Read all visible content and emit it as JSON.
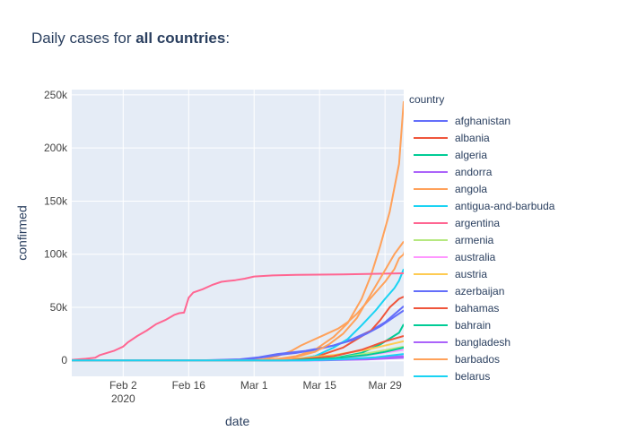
{
  "title": {
    "prefix": "Daily cases for ",
    "bold": "all countries",
    "suffix": ":"
  },
  "chart_data": {
    "type": "line",
    "title": "Daily cases for all countries:",
    "xlabel": "date",
    "ylabel": "confirmed",
    "legend_title": "country",
    "legend_position": "right",
    "grid": true,
    "x_tick_labels": [
      "Feb 2\n2020",
      "Feb 16",
      "Mar 1",
      "Mar 15",
      "Mar 29"
    ],
    "y_tick_labels": [
      "0",
      "50k",
      "100k",
      "150k",
      "200k",
      "250k"
    ],
    "xlim": [
      "2020-01-22",
      "2020-04-02"
    ],
    "ylim": [
      -15000,
      255000
    ],
    "series": [
      {
        "name": "afghanistan",
        "color": "#636efa",
        "points": [
          [
            "2020-01-22",
            0
          ],
          [
            "2020-02-18",
            0
          ],
          [
            "2020-02-27",
            1000
          ],
          [
            "2020-03-02",
            3000
          ],
          [
            "2020-03-06",
            6000
          ],
          [
            "2020-03-12",
            9000
          ],
          [
            "2020-03-18",
            14000
          ],
          [
            "2020-03-22",
            20000
          ],
          [
            "2020-03-26",
            28000
          ],
          [
            "2020-03-29",
            36000
          ],
          [
            "2020-04-02",
            51000
          ]
        ]
      },
      {
        "name": "albania",
        "color": "#EF553B",
        "points": [
          [
            "2020-01-22",
            0
          ],
          [
            "2020-03-05",
            0
          ],
          [
            "2020-03-12",
            2000
          ],
          [
            "2020-03-16",
            6000
          ],
          [
            "2020-03-20",
            12000
          ],
          [
            "2020-03-23",
            20000
          ],
          [
            "2020-03-26",
            28000
          ],
          [
            "2020-03-28",
            38000
          ],
          [
            "2020-03-30",
            50000
          ],
          [
            "2020-04-01",
            58000
          ],
          [
            "2020-04-02",
            60000
          ]
        ]
      },
      {
        "name": "algeria",
        "color": "#00cc96",
        "points": [
          [
            "2020-01-22",
            0
          ],
          [
            "2020-03-10",
            0
          ],
          [
            "2020-03-18",
            2000
          ],
          [
            "2020-03-24",
            7000
          ],
          [
            "2020-03-28",
            15000
          ],
          [
            "2020-04-01",
            26000
          ],
          [
            "2020-04-02",
            34000
          ]
        ]
      },
      {
        "name": "andorra",
        "color": "#ab63fa",
        "points": [
          [
            "2020-01-22",
            0
          ],
          [
            "2020-03-15",
            0
          ],
          [
            "2020-03-25",
            800
          ],
          [
            "2020-04-02",
            2500
          ]
        ]
      },
      {
        "name": "angola",
        "color": "#FFA15A",
        "points": [
          [
            "2020-01-22",
            0
          ],
          [
            "2020-02-29",
            0
          ],
          [
            "2020-03-05",
            700
          ],
          [
            "2020-03-10",
            4000
          ],
          [
            "2020-03-14",
            10000
          ],
          [
            "2020-03-18",
            22000
          ],
          [
            "2020-03-21",
            35000
          ],
          [
            "2020-03-24",
            58000
          ],
          [
            "2020-03-26",
            80000
          ],
          [
            "2020-03-28",
            108000
          ],
          [
            "2020-03-30",
            140000
          ],
          [
            "2020-04-01",
            185000
          ],
          [
            "2020-04-02",
            244000
          ]
        ]
      },
      {
        "name": "antigua-and-barbuda",
        "color": "#19d3f3",
        "points": [
          [
            "2020-01-22",
            0
          ],
          [
            "2020-03-08",
            0
          ],
          [
            "2020-03-14",
            4000
          ],
          [
            "2020-03-18",
            12000
          ],
          [
            "2020-03-21",
            20000
          ],
          [
            "2020-03-24",
            33000
          ],
          [
            "2020-03-27",
            47000
          ],
          [
            "2020-03-29",
            58000
          ],
          [
            "2020-03-31",
            68000
          ],
          [
            "2020-04-01",
            75000
          ],
          [
            "2020-04-02",
            86000
          ]
        ]
      },
      {
        "name": "argentina",
        "color": "#FF6692",
        "points": [
          [
            "2020-01-22",
            500
          ],
          [
            "2020-01-25",
            1500
          ],
          [
            "2020-01-27",
            2500
          ],
          [
            "2020-01-28",
            5000
          ],
          [
            "2020-01-31",
            9000
          ],
          [
            "2020-02-02",
            13000
          ],
          [
            "2020-02-03",
            17000
          ],
          [
            "2020-02-05",
            23000
          ],
          [
            "2020-02-07",
            28000
          ],
          [
            "2020-02-09",
            34000
          ],
          [
            "2020-02-11",
            38000
          ],
          [
            "2020-02-13",
            43000
          ],
          [
            "2020-02-14",
            44500
          ],
          [
            "2020-02-15",
            45000
          ],
          [
            "2020-02-16",
            59000
          ],
          [
            "2020-02-17",
            64000
          ],
          [
            "2020-02-19",
            67000
          ],
          [
            "2020-02-21",
            71000
          ],
          [
            "2020-02-23",
            74000
          ],
          [
            "2020-02-26",
            75500
          ],
          [
            "2020-02-28",
            77000
          ],
          [
            "2020-03-01",
            79000
          ],
          [
            "2020-03-05",
            80000
          ],
          [
            "2020-03-10",
            80500
          ],
          [
            "2020-03-20",
            81000
          ],
          [
            "2020-04-02",
            82000
          ]
        ]
      },
      {
        "name": "armenia",
        "color": "#B6E880",
        "points": [
          [
            "2020-01-22",
            0
          ],
          [
            "2020-03-10",
            0
          ],
          [
            "2020-03-20",
            3000
          ],
          [
            "2020-03-27",
            8000
          ],
          [
            "2020-04-02",
            13000
          ]
        ]
      },
      {
        "name": "australia",
        "color": "#FF97FF",
        "points": [
          [
            "2020-01-22",
            0
          ],
          [
            "2020-03-12",
            0
          ],
          [
            "2020-03-20",
            2000
          ],
          [
            "2020-03-27",
            6000
          ],
          [
            "2020-04-02",
            10000
          ]
        ]
      },
      {
        "name": "austria",
        "color": "#FECB52",
        "points": [
          [
            "2020-01-22",
            0
          ],
          [
            "2020-03-01",
            0
          ],
          [
            "2020-03-10",
            1500
          ],
          [
            "2020-03-18",
            5000
          ],
          [
            "2020-03-25",
            10000
          ],
          [
            "2020-04-02",
            18000
          ]
        ]
      },
      {
        "name": "azerbaijan",
        "color": "#636efa",
        "points": [
          [
            "2020-01-22",
            0
          ],
          [
            "2020-02-20",
            0
          ],
          [
            "2020-02-27",
            500
          ],
          [
            "2020-03-03",
            3000
          ],
          [
            "2020-03-06",
            5000
          ],
          [
            "2020-03-10",
            7000
          ],
          [
            "2020-03-14",
            10000
          ],
          [
            "2020-03-18",
            14000
          ],
          [
            "2020-03-22",
            19000
          ],
          [
            "2020-03-25",
            25000
          ],
          [
            "2020-03-28",
            32000
          ],
          [
            "2020-03-31",
            41000
          ],
          [
            "2020-04-02",
            47000
          ]
        ]
      },
      {
        "name": "bahamas",
        "color": "#EF553B",
        "points": [
          [
            "2020-01-22",
            0
          ],
          [
            "2020-03-08",
            0
          ],
          [
            "2020-03-18",
            4000
          ],
          [
            "2020-03-24",
            10000
          ],
          [
            "2020-03-29",
            18000
          ],
          [
            "2020-04-02",
            23000
          ]
        ]
      },
      {
        "name": "bahrain",
        "color": "#00cc96",
        "points": [
          [
            "2020-01-22",
            0
          ],
          [
            "2020-03-08",
            0
          ],
          [
            "2020-03-18",
            2000
          ],
          [
            "2020-03-25",
            5000
          ],
          [
            "2020-03-29",
            8000
          ],
          [
            "2020-04-02",
            12000
          ]
        ]
      },
      {
        "name": "bangladesh",
        "color": "#ab63fa",
        "points": [
          [
            "2020-01-22",
            0
          ],
          [
            "2020-03-12",
            0
          ],
          [
            "2020-03-22",
            1000
          ],
          [
            "2020-04-02",
            4000
          ]
        ]
      },
      {
        "name": "barbados",
        "color": "#FFA15A",
        "points": [
          [
            "2020-01-22",
            0
          ],
          [
            "2020-03-02",
            0
          ],
          [
            "2020-03-09",
            2000
          ],
          [
            "2020-03-14",
            8000
          ],
          [
            "2020-03-17",
            15000
          ],
          [
            "2020-03-20",
            25000
          ],
          [
            "2020-03-23",
            40000
          ],
          [
            "2020-03-25",
            55000
          ],
          [
            "2020-03-27",
            70000
          ],
          [
            "2020-03-29",
            85000
          ],
          [
            "2020-03-31",
            100000
          ],
          [
            "2020-04-02",
            112000
          ]
        ]
      },
      {
        "name": "belarus",
        "color": "#19d3f3",
        "points": [
          [
            "2020-01-22",
            0
          ],
          [
            "2020-03-12",
            0
          ],
          [
            "2020-03-20",
            1000
          ],
          [
            "2020-03-27",
            3000
          ],
          [
            "2020-04-02",
            6000
          ]
        ]
      }
    ],
    "extra_lines_not_in_legend": [
      {
        "color": "#FFA15A",
        "points": [
          [
            "2020-01-22",
            0
          ],
          [
            "2020-02-28",
            0
          ],
          [
            "2020-03-03",
            1000
          ],
          [
            "2020-03-06",
            4000
          ],
          [
            "2020-03-09",
            9000
          ],
          [
            "2020-03-11",
            14000
          ],
          [
            "2020-03-13",
            18000
          ],
          [
            "2020-03-16",
            24000
          ],
          [
            "2020-03-19",
            30000
          ],
          [
            "2020-03-21",
            36000
          ],
          [
            "2020-03-23",
            44000
          ],
          [
            "2020-03-25",
            54000
          ],
          [
            "2020-03-27",
            64000
          ],
          [
            "2020-03-29",
            74000
          ],
          [
            "2020-03-31",
            86000
          ],
          [
            "2020-04-01",
            96000
          ],
          [
            "2020-04-02",
            100000
          ],
          [
            "2020-04-03",
            115000
          ]
        ]
      }
    ]
  }
}
